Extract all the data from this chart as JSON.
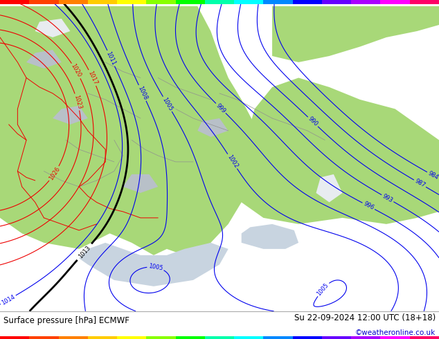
{
  "title_left": "Surface pressure [hPa] ECMWF",
  "title_right": "Su 22-09-2024 12:00 UTC (18+18)",
  "credit": "©weatheronline.co.uk",
  "credit_color": "#0000cc",
  "fig_width": 6.34,
  "fig_height": 4.9,
  "bg_color_land_green": "#a8d878",
  "bg_color_land_light": "#c8d8b0",
  "bg_color_sea": "#c8d4e0",
  "bg_color_grey": "#b8c0c8",
  "bg_color_white": "#e8ecf0",
  "contour_blue": "#0000ee",
  "contour_red": "#ee0000",
  "contour_black": "#000000",
  "rainbow_top": [
    "#ff0000",
    "#ff4000",
    "#ff8000",
    "#ffcc00",
    "#ffff00",
    "#88ff00",
    "#00ff00",
    "#00ffaa",
    "#00ffff",
    "#0088ff",
    "#0000ff",
    "#6600ff",
    "#aa00ff",
    "#ff00ff",
    "#ff0066"
  ],
  "rainbow_bottom": [
    "#ff0000",
    "#ff4000",
    "#ff8000",
    "#ffcc00",
    "#ffff00",
    "#88ff00",
    "#00ff00",
    "#00ffaa",
    "#00ffff",
    "#0088ff",
    "#0000ff",
    "#6600ff",
    "#aa00ff",
    "#ff00ff",
    "#ff0066"
  ]
}
